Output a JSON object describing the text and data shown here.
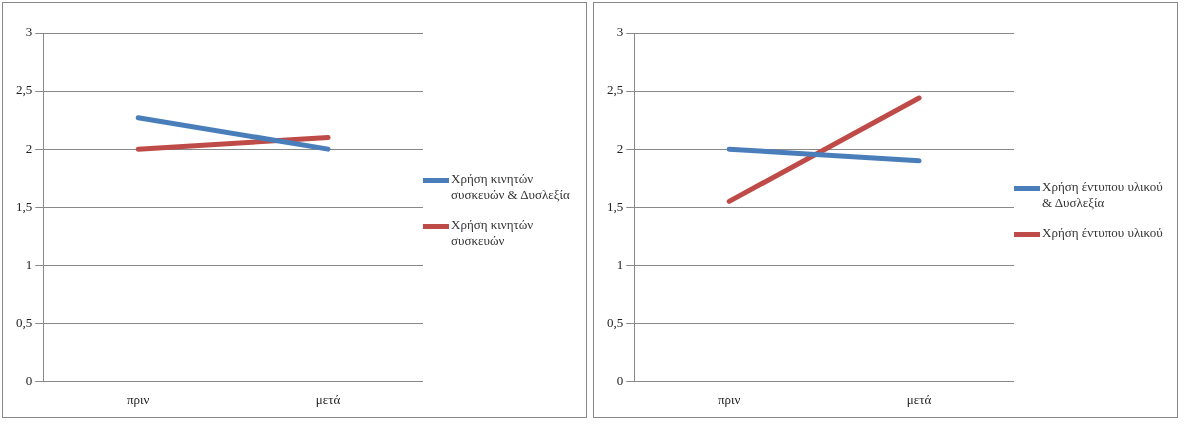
{
  "chart_data": [
    {
      "type": "line",
      "categories": [
        "πριν",
        "μετά"
      ],
      "ylim": [
        0,
        3
      ],
      "yticks": [
        0,
        {
          "value": 0.5,
          "label": "0,5"
        },
        1,
        {
          "value": 1.5,
          "label": "1,5"
        },
        2,
        {
          "value": 2.5,
          "label": "2,5"
        },
        3
      ],
      "grid": "y",
      "legend": "right",
      "marker": "none",
      "line_style": "solid",
      "series": [
        {
          "name": "Χρήση κινητών συσκευών & Δυσλεξία",
          "color": "#4a7ebb",
          "values": [
            2.27,
            2.0
          ]
        },
        {
          "name": "Χρήση κινητών συσκευών",
          "color": "#be4b48",
          "values": [
            2.0,
            2.1
          ]
        }
      ]
    },
    {
      "type": "line",
      "categories": [
        "πριν",
        "μετά"
      ],
      "ylim": [
        0,
        3
      ],
      "yticks": [
        0,
        {
          "value": 0.5,
          "label": "0,5"
        },
        1,
        {
          "value": 1.5,
          "label": "1,5"
        },
        2,
        {
          "value": 2.5,
          "label": "2,5"
        },
        3
      ],
      "grid": "y",
      "legend": "right",
      "marker": "none",
      "line_style": "solid",
      "series": [
        {
          "name": "Χρήση έντυπου υλικού & Δυσλεξία",
          "color": "#4a7ebb",
          "values": [
            2.0,
            1.9
          ]
        },
        {
          "name": "Χρήση έντυπου υλικού",
          "color": "#be4b48",
          "values": [
            1.55,
            2.44
          ]
        }
      ]
    }
  ]
}
